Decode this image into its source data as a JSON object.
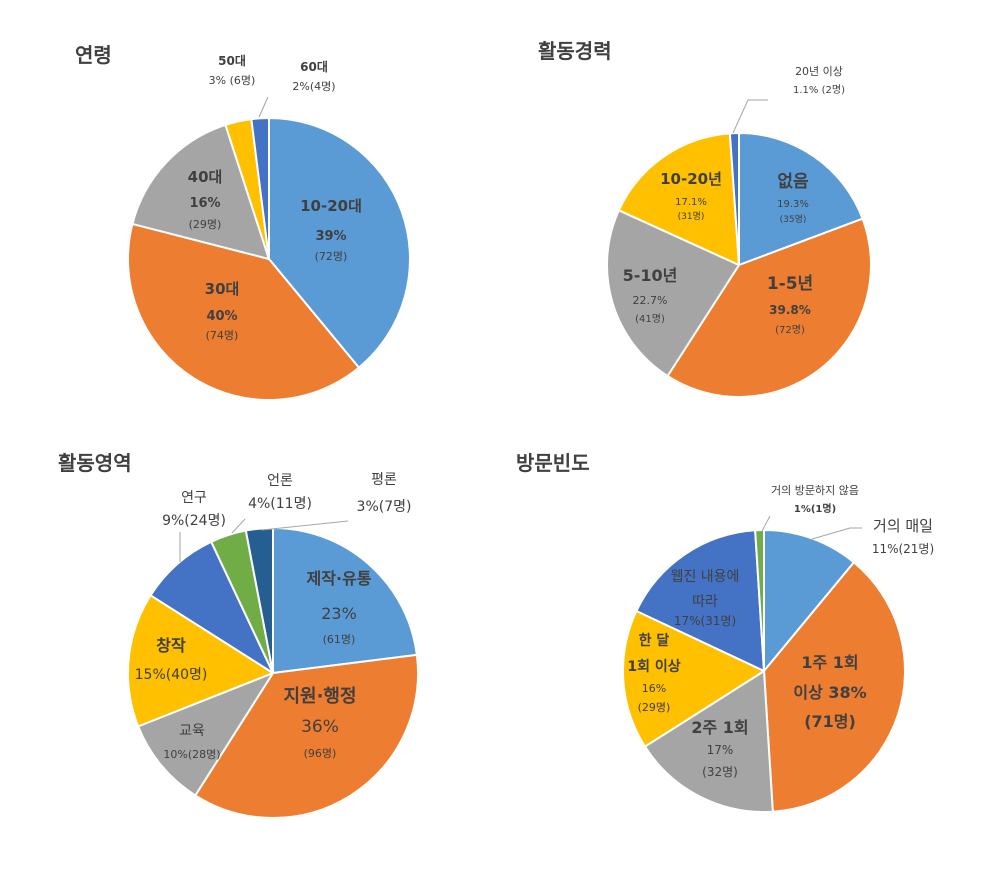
{
  "colors": {
    "blue": "#5B9BD5",
    "orange": "#ED7D31",
    "gray": "#A5A5A5",
    "yellow": "#FFC000",
    "darkblue": "#4472C4",
    "green": "#70AD47",
    "navy": "#255E91",
    "white": "#FFFFFF",
    "text": "#404040",
    "leader": "#A6A6A6"
  },
  "chart_data": [
    {
      "type": "pie",
      "title": "연령",
      "slices": [
        {
          "label": "10-20대",
          "value": 39,
          "percent_text": "39%",
          "count_text": "(72명)",
          "color": "blue"
        },
        {
          "label": "30대",
          "value": 40,
          "percent_text": "40%",
          "count_text": "(74명)",
          "color": "orange"
        },
        {
          "label": "40대",
          "value": 16,
          "percent_text": "16%",
          "count_text": "(29명)",
          "color": "gray"
        },
        {
          "label": "50대",
          "value": 3,
          "percent_text": "3% (6명)",
          "count_text": "",
          "color": "yellow"
        },
        {
          "label": "60대",
          "value": 2,
          "percent_text": "2%(4명)",
          "count_text": "",
          "color": "darkblue"
        }
      ]
    },
    {
      "type": "pie",
      "title": "활동경력",
      "slices": [
        {
          "label": "없음",
          "value": 19.3,
          "percent_text": "19.3%",
          "count_text": "(35명)",
          "color": "blue"
        },
        {
          "label": "1-5년",
          "value": 39.8,
          "percent_text": "39.8%",
          "count_text": "(72명)",
          "color": "orange"
        },
        {
          "label": "5-10년",
          "value": 22.7,
          "percent_text": "22.7%",
          "count_text": "(41명)",
          "color": "gray"
        },
        {
          "label": "10-20년",
          "value": 17.1,
          "percent_text": "17.1%",
          "count_text": "(31명)",
          "color": "yellow"
        },
        {
          "label": "20년 이상",
          "value": 1.1,
          "percent_text": "1.1% (2명)",
          "count_text": "",
          "color": "darkblue"
        }
      ]
    },
    {
      "type": "pie",
      "title": "활동영역",
      "slices": [
        {
          "label": "제작·유통",
          "value": 23,
          "percent_text": "23%",
          "count_text": "(61명)",
          "color": "blue"
        },
        {
          "label": "지원·행정",
          "value": 36,
          "percent_text": "36%",
          "count_text": "(96명)",
          "color": "orange"
        },
        {
          "label": "교육",
          "value": 10,
          "percent_text": "10%(28명)",
          "count_text": "",
          "color": "gray"
        },
        {
          "label": "창작",
          "value": 15,
          "percent_text": "15%(40명)",
          "count_text": "",
          "color": "yellow"
        },
        {
          "label": "연구",
          "value": 9,
          "percent_text": "9%(24명)",
          "count_text": "",
          "color": "darkblue"
        },
        {
          "label": "언론",
          "value": 4,
          "percent_text": "4%(11명)",
          "count_text": "",
          "color": "green"
        },
        {
          "label": "평론",
          "value": 3,
          "percent_text": "3%(7명)",
          "count_text": "",
          "color": "navy"
        }
      ]
    },
    {
      "type": "pie",
      "title": "방문빈도",
      "slices": [
        {
          "label": "거의 매일",
          "value": 11,
          "percent_text": "11%(21명)",
          "count_text": "",
          "color": "blue"
        },
        {
          "label": "1주 1회\n이상 38%\n(71명)",
          "value": 38,
          "percent_text": "",
          "count_text": "",
          "color": "orange"
        },
        {
          "label": "2주 1회",
          "value": 17,
          "percent_text": "17%",
          "count_text": "(32명)",
          "color": "gray"
        },
        {
          "label": "한 달\n1회 이상",
          "value": 16,
          "percent_text": "16%",
          "count_text": "(29명)",
          "color": "yellow"
        },
        {
          "label": "웹진 내용에\n따라",
          "value": 17,
          "percent_text": "17%(31명)",
          "count_text": "",
          "color": "darkblue"
        },
        {
          "label": "거의 방문하지 않음",
          "value": 1,
          "percent_text": "1%(1명)",
          "count_text": "",
          "color": "green"
        }
      ]
    }
  ]
}
